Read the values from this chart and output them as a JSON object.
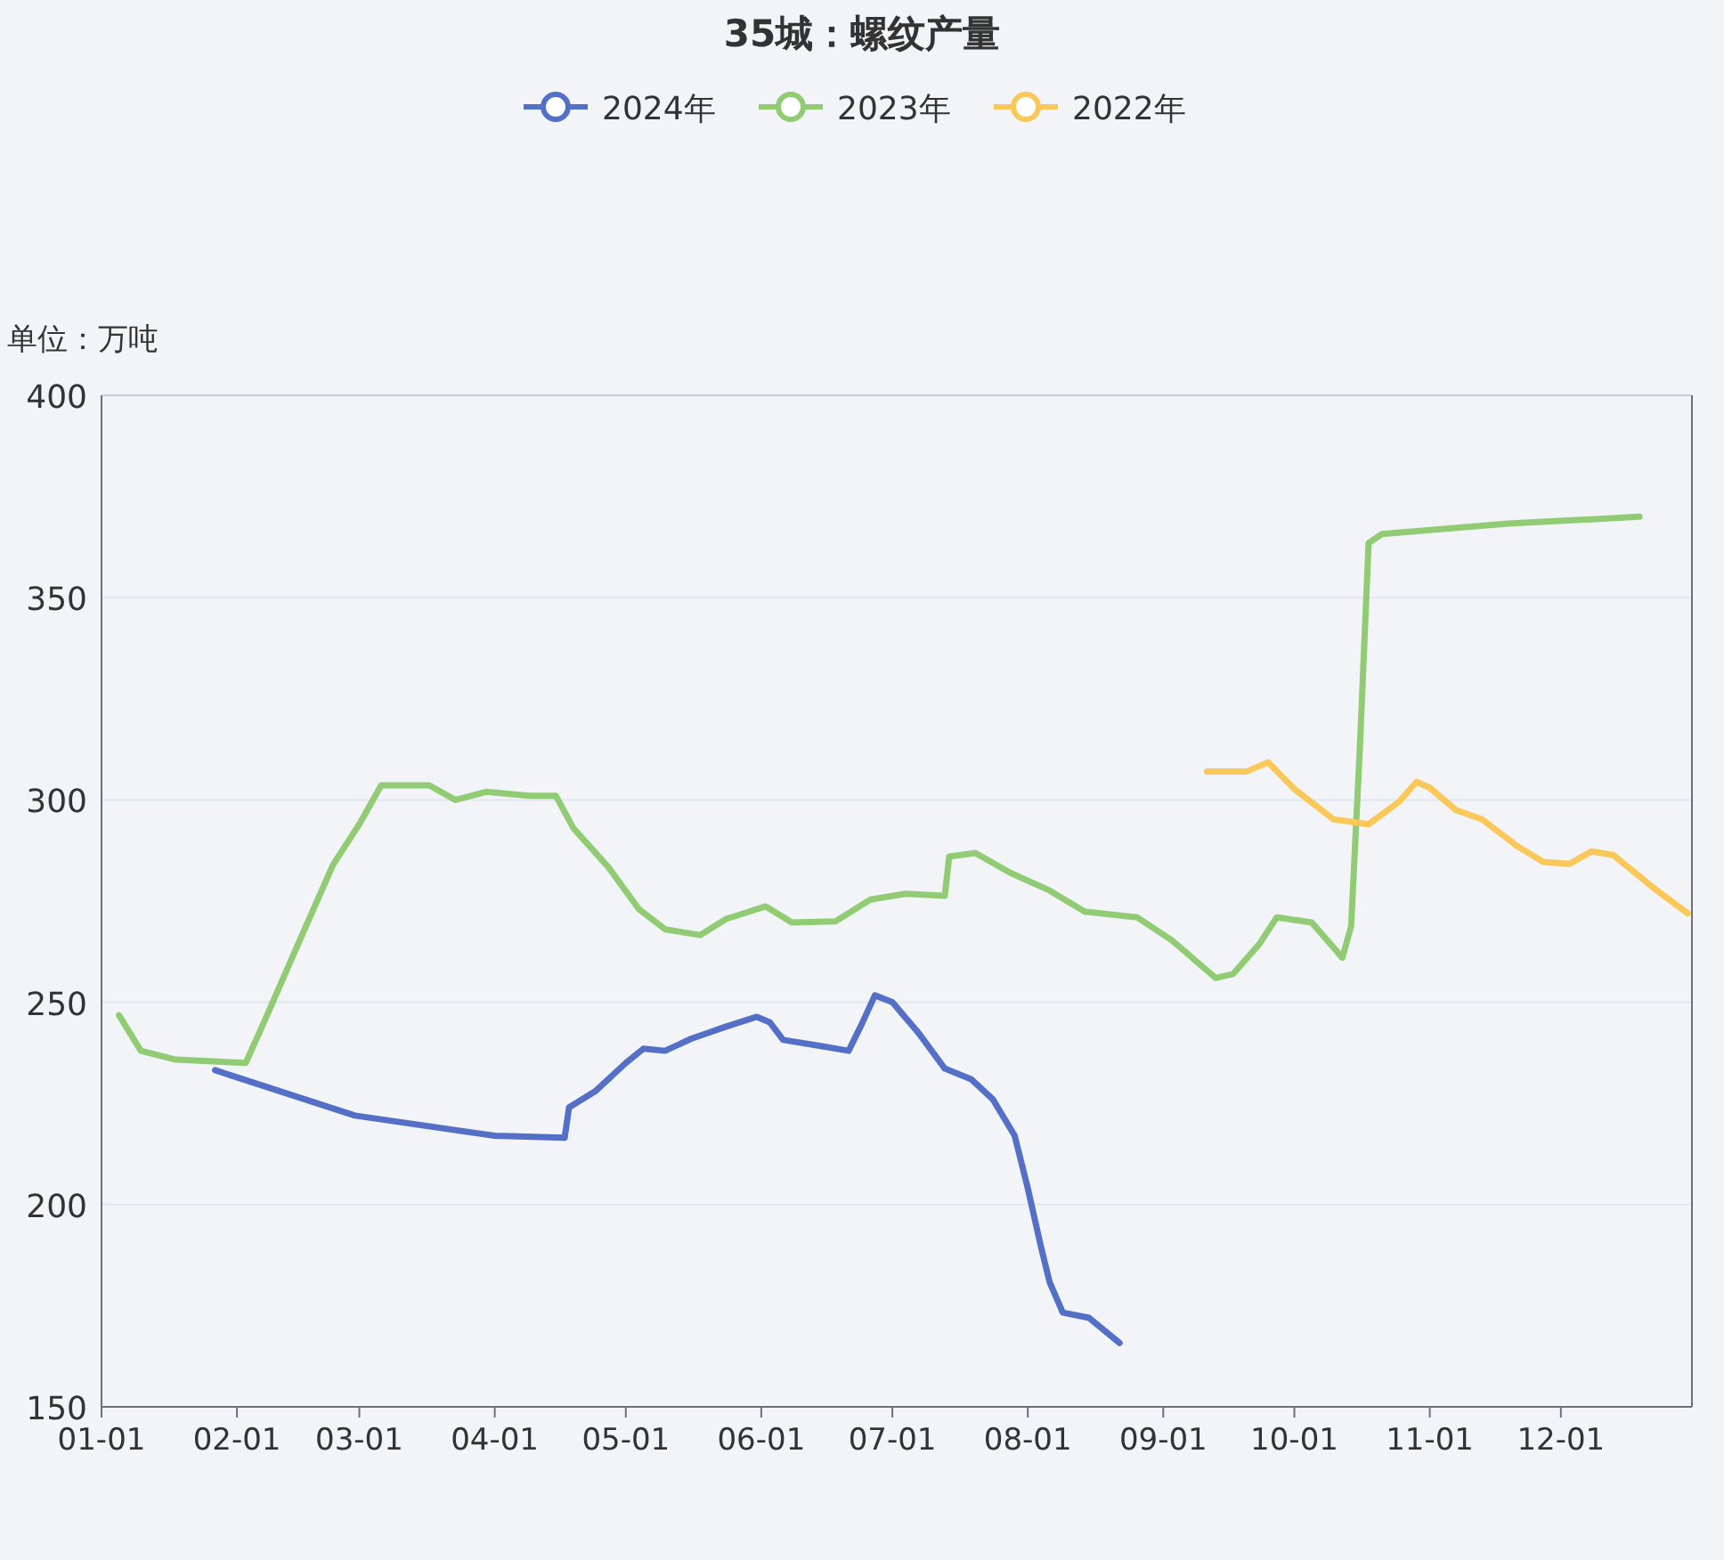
{
  "chart_data": {
    "type": "line",
    "title": "35城：螺纹产量",
    "ylabel": "单位：万吨",
    "legend": "top",
    "grid": "y",
    "marker": "none",
    "line_style": "solid",
    "xlim": [
      "--01-01",
      "--12-31"
    ],
    "xticks": [
      {
        "value": "--01-01",
        "label": "01-01"
      },
      {
        "value": "--02-01",
        "label": "02-01"
      },
      {
        "value": "--03-01",
        "label": "03-01"
      },
      {
        "value": "--04-01",
        "label": "04-01"
      },
      {
        "value": "--05-01",
        "label": "05-01"
      },
      {
        "value": "--06-01",
        "label": "06-01"
      },
      {
        "value": "--07-01",
        "label": "07-01"
      },
      {
        "value": "--08-01",
        "label": "08-01"
      },
      {
        "value": "--09-01",
        "label": "09-01"
      },
      {
        "value": "--10-01",
        "label": "10-01"
      },
      {
        "value": "--11-01",
        "label": "11-01"
      },
      {
        "value": "--12-01",
        "label": "12-01"
      }
    ],
    "ylim": [
      150,
      400
    ],
    "yticks": [
      150,
      200,
      250,
      300,
      350,
      400
    ],
    "series": [
      {
        "name": "2024年",
        "color": "#5470c6",
        "x": [
          "--01-27",
          "--02-28",
          "--04-01",
          "--04-17",
          "--04-18",
          "--04-24",
          "--05-01",
          "--05-05",
          "--05-10",
          "--05-16",
          "--05-24",
          "--05-31",
          "--06-03",
          "--06-06",
          "--06-14",
          "--06-21",
          "--06-24",
          "--06-27",
          "--07-01",
          "--07-07",
          "--07-13",
          "--07-19",
          "--07-24",
          "--07-29",
          "--08-01",
          "--08-04",
          "--08-06",
          "--08-09",
          "--08-15",
          "--08-22"
        ],
        "values": [
          233.2,
          222,
          217,
          216.5,
          224,
          228,
          235,
          238.5,
          238,
          241,
          244,
          246.4,
          245,
          240.7,
          239.3,
          238,
          244.6,
          251.7,
          250,
          242.4,
          233.6,
          231,
          226,
          217,
          204,
          189.6,
          180.8,
          173.3,
          172,
          165.8
        ]
      },
      {
        "name": "2023年",
        "color": "#91cc75",
        "x": [
          "--01-05",
          "--01-10",
          "--01-18",
          "--02-03",
          "--02-07",
          "--02-15",
          "--02-23",
          "--03-01",
          "--03-06",
          "--03-17",
          "--03-23",
          "--03-30",
          "--04-09",
          "--04-15",
          "--04-19",
          "--04-27",
          "--05-04",
          "--05-10",
          "--05-18",
          "--05-24",
          "--06-02",
          "--06-08",
          "--06-18",
          "--06-26",
          "--07-04",
          "--07-13",
          "--07-14",
          "--07-20",
          "--07-28",
          "--08-06",
          "--08-14",
          "--08-26",
          "--09-03",
          "--09-13",
          "--09-17",
          "--09-23",
          "--09-27",
          "--10-05",
          "--10-12",
          "--10-14",
          "--10-16",
          "--10-18",
          "--10-21",
          "--11-19",
          "--12-19"
        ],
        "values": [
          246.8,
          238,
          235.8,
          235,
          244.6,
          264.4,
          284,
          294,
          303.6,
          303.6,
          300,
          302,
          301,
          301,
          293,
          283.4,
          273,
          268,
          266.6,
          270.6,
          273.7,
          269.7,
          270,
          275.4,
          276.8,
          276.3,
          286,
          286.9,
          282,
          277.6,
          272.4,
          271,
          265.3,
          256,
          257,
          264.4,
          271,
          269.7,
          261,
          268.8,
          312.9,
          363.5,
          365.7,
          368.3,
          370
        ]
      },
      {
        "name": "2022年",
        "color": "#fac858",
        "x": [
          "--09-11",
          "--09-20",
          "--09-25",
          "--10-01",
          "--10-10",
          "--10-18",
          "--10-25",
          "--10-29",
          "--11-01",
          "--11-07",
          "--11-13",
          "--11-21",
          "--11-27",
          "--12-03",
          "--12-08",
          "--12-13",
          "--12-23",
          "--12-30"
        ],
        "values": [
          307,
          307,
          309.3,
          302.7,
          295.2,
          294,
          299.6,
          304.5,
          303,
          297.5,
          295.2,
          288.6,
          284.7,
          284.2,
          287.3,
          286.4,
          277.6,
          272
        ]
      }
    ]
  }
}
